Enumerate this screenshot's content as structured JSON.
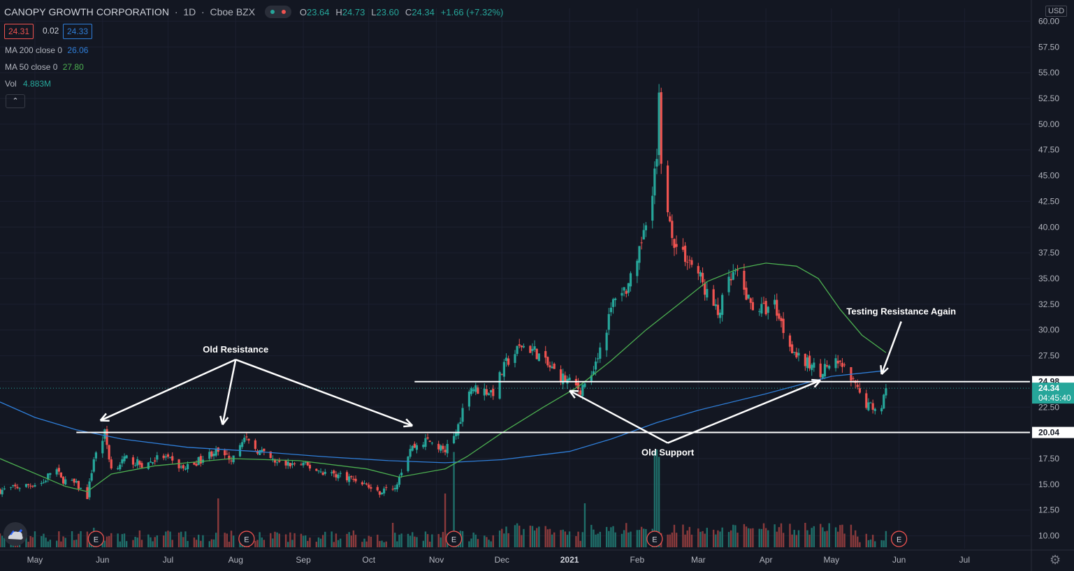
{
  "header": {
    "title": "CANOPY GROWTH CORPORATION",
    "interval": "1D",
    "exchange": "Cboe BZX",
    "ohlc": [
      {
        "k": "O",
        "v": "23.64"
      },
      {
        "k": "H",
        "v": "24.73"
      },
      {
        "k": "L",
        "v": "23.60"
      },
      {
        "k": "C",
        "v": "24.34"
      }
    ],
    "change": "+1.66 (+7.32%)",
    "bid": "24.31",
    "spread": "0.02",
    "ask": "24.33"
  },
  "legend": {
    "ma200_label": "MA 200 close 0",
    "ma200_value": "26.06",
    "ma50_label": "MA 50 close 0",
    "ma50_value": "27.80",
    "vol_label": "Vol",
    "vol_value": "4.883M",
    "collapse_glyph": "⌃"
  },
  "axis": {
    "currency": "USD",
    "countdown": "04:45:40",
    "earnings_marker": "E",
    "settings_icon": "gear-icon"
  },
  "colors": {
    "up": "#26a69a",
    "down": "#ef5350",
    "ma200": "#2f7ed8",
    "ma50": "#4caf50",
    "annotation": "#ffffff",
    "background": "#131722"
  },
  "chart_data": {
    "type": "candlestick",
    "symbol": "CANOPY GROWTH CORPORATION",
    "ylim": [
      8.75,
      61.25
    ],
    "y_ticks": [
      "10.00",
      "12.50",
      "15.00",
      "17.50",
      "20.00",
      "22.50",
      "25.00",
      "27.50",
      "30.00",
      "32.50",
      "35.00",
      "37.50",
      "40.00",
      "42.50",
      "45.00",
      "47.50",
      "50.00",
      "52.50",
      "55.00",
      "57.50",
      "60.00"
    ],
    "x_ticks": [
      "May",
      "Jun",
      "Jul",
      "Aug",
      "Sep",
      "Oct",
      "Nov",
      "Dec",
      "2021",
      "Feb",
      "Mar",
      "Apr",
      "May",
      "Jun",
      "Jul"
    ],
    "bold_x_ticks": [
      "2021"
    ],
    "x_range": [
      "2020-04-15",
      "2021-07-31"
    ],
    "month_starts": [
      "2020-05-01",
      "2020-06-01",
      "2020-07-01",
      "2020-08-01",
      "2020-09-01",
      "2020-10-01",
      "2020-11-01",
      "2020-12-01",
      "2021-01-01",
      "2021-02-01",
      "2021-03-01",
      "2021-04-01",
      "2021-05-01",
      "2021-06-01",
      "2021-07-01"
    ],
    "price_anchors": [
      [
        "2020-04-15",
        14.4
      ],
      [
        "2020-05-05",
        15.2
      ],
      [
        "2020-05-10",
        16.8
      ],
      [
        "2020-05-13",
        15.5
      ],
      [
        "2020-05-20",
        15.0
      ],
      [
        "2020-05-25",
        13.8
      ],
      [
        "2020-05-28",
        17.5
      ],
      [
        "2020-06-02",
        20.0
      ],
      [
        "2020-06-05",
        16.5
      ],
      [
        "2020-06-12",
        17.5
      ],
      [
        "2020-06-20",
        16.8
      ],
      [
        "2020-06-28",
        17.8
      ],
      [
        "2020-07-08",
        16.5
      ],
      [
        "2020-07-16",
        17.4
      ],
      [
        "2020-07-22",
        18.2
      ],
      [
        "2020-07-30",
        17.6
      ],
      [
        "2020-08-04",
        19.5
      ],
      [
        "2020-08-10",
        18.5
      ],
      [
        "2020-08-20",
        17.0
      ],
      [
        "2020-09-01",
        16.9
      ],
      [
        "2020-09-10",
        16.2
      ],
      [
        "2020-09-20",
        15.8
      ],
      [
        "2020-09-28",
        15.2
      ],
      [
        "2020-10-05",
        14.2
      ],
      [
        "2020-10-13",
        14.8
      ],
      [
        "2020-10-20",
        18.5
      ],
      [
        "2020-10-28",
        19.3
      ],
      [
        "2020-11-05",
        18.2
      ],
      [
        "2020-11-10",
        20.0
      ],
      [
        "2020-11-16",
        24.5
      ],
      [
        "2020-11-20",
        24.2
      ],
      [
        "2020-11-27",
        24.0
      ],
      [
        "2020-12-03",
        26.8
      ],
      [
        "2020-12-10",
        28.5
      ],
      [
        "2020-12-16",
        28.0
      ],
      [
        "2020-12-22",
        26.5
      ],
      [
        "2020-12-30",
        25.2
      ],
      [
        "2021-01-06",
        24.2
      ],
      [
        "2021-01-12",
        26.5
      ],
      [
        "2021-01-17",
        29.5
      ],
      [
        "2021-01-22",
        33.5
      ],
      [
        "2021-01-27",
        34.0
      ],
      [
        "2021-02-01",
        36.0
      ],
      [
        "2021-02-04",
        40.0
      ],
      [
        "2021-02-08",
        44.0
      ],
      [
        "2021-02-10",
        47.0
      ],
      [
        "2021-02-11",
        52.5
      ],
      [
        "2021-02-12",
        47.0
      ],
      [
        "2021-02-15",
        41.0
      ],
      [
        "2021-02-19",
        38.0
      ],
      [
        "2021-02-24",
        37.0
      ],
      [
        "2021-03-01",
        35.5
      ],
      [
        "2021-03-05",
        33.5
      ],
      [
        "2021-03-10",
        31.5
      ],
      [
        "2021-03-15",
        34.5
      ],
      [
        "2021-03-18",
        35.5
      ],
      [
        "2021-03-25",
        32.5
      ],
      [
        "2021-03-31",
        32.0
      ],
      [
        "2021-04-05",
        32.5
      ],
      [
        "2021-04-10",
        29.5
      ],
      [
        "2021-04-16",
        27.2
      ],
      [
        "2021-04-22",
        26.5
      ],
      [
        "2021-04-26",
        26.0
      ],
      [
        "2021-05-01",
        26.8
      ],
      [
        "2021-05-06",
        26.5
      ],
      [
        "2021-05-12",
        24.5
      ],
      [
        "2021-05-16",
        23.0
      ],
      [
        "2021-05-20",
        22.5
      ],
      [
        "2021-05-24",
        22.8
      ],
      [
        "2021-05-26",
        24.34
      ]
    ],
    "ma50": [
      [
        "2020-04-15",
        17.5
      ],
      [
        "2020-05-15",
        14.8
      ],
      [
        "2020-05-25",
        14.3
      ],
      [
        "2020-06-05",
        16.0
      ],
      [
        "2020-06-25",
        16.8
      ],
      [
        "2020-07-30",
        17.5
      ],
      [
        "2020-08-30",
        17.3
      ],
      [
        "2020-09-30",
        16.5
      ],
      [
        "2020-10-15",
        15.7
      ],
      [
        "2020-11-05",
        16.5
      ],
      [
        "2020-11-15",
        17.7
      ],
      [
        "2020-12-01",
        20.0
      ],
      [
        "2020-12-20",
        22.5
      ],
      [
        "2021-01-05",
        24.5
      ],
      [
        "2021-01-20",
        27.0
      ],
      [
        "2021-02-05",
        30.0
      ],
      [
        "2021-02-20",
        32.5
      ],
      [
        "2021-03-05",
        34.7
      ],
      [
        "2021-03-20",
        36.0
      ],
      [
        "2021-04-01",
        36.5
      ],
      [
        "2021-04-15",
        36.2
      ],
      [
        "2021-04-25",
        35.0
      ],
      [
        "2021-05-05",
        32.0
      ],
      [
        "2021-05-15",
        29.5
      ],
      [
        "2021-05-26",
        27.8
      ]
    ],
    "ma200": [
      [
        "2020-04-15",
        23.0
      ],
      [
        "2020-05-01",
        21.5
      ],
      [
        "2020-05-20",
        20.3
      ],
      [
        "2020-06-10",
        19.4
      ],
      [
        "2020-07-10",
        18.6
      ],
      [
        "2020-08-10",
        18.2
      ],
      [
        "2020-09-10",
        17.7
      ],
      [
        "2020-10-10",
        17.3
      ],
      [
        "2020-11-05",
        17.1
      ],
      [
        "2020-12-01",
        17.4
      ],
      [
        "2021-01-01",
        18.2
      ],
      [
        "2021-01-20",
        19.4
      ],
      [
        "2021-02-10",
        21.0
      ],
      [
        "2021-03-01",
        22.2
      ],
      [
        "2021-04-01",
        23.8
      ],
      [
        "2021-05-01",
        25.5
      ],
      [
        "2021-05-26",
        26.06
      ]
    ],
    "volume_scale_max": 40,
    "volume_spikes": [
      [
        "2020-05-28",
        8
      ],
      [
        "2020-07-24",
        20
      ],
      [
        "2020-10-12",
        10
      ],
      [
        "2020-11-05",
        22
      ],
      [
        "2020-11-09",
        39
      ],
      [
        "2021-01-08",
        18
      ],
      [
        "2021-02-09",
        39
      ],
      [
        "2021-02-10",
        40
      ],
      [
        "2021-02-11",
        37
      ]
    ],
    "earnings_dates": [
      "2020-05-29",
      "2020-08-06",
      "2020-11-09",
      "2021-02-09",
      "2021-06-01"
    ],
    "last_price": 24.34,
    "price_labels": [
      {
        "value": 24.98,
        "label": "24.98"
      },
      {
        "value": 20.04,
        "label": "20.04"
      },
      {
        "value": 24.34,
        "label": "24.34"
      }
    ],
    "levels": [
      {
        "value": 24.98,
        "from": "2020-10-22",
        "to": "2021-07-31"
      },
      {
        "value": 20.04,
        "from": "2020-05-20",
        "to": "2021-07-31"
      }
    ],
    "annotations": [
      {
        "text": "Old Resistance",
        "at": [
          "2020-08-01",
          27.8
        ],
        "targets": [
          [
            "2020-05-31",
            21.2
          ],
          [
            "2020-07-26",
            20.8
          ],
          [
            "2020-10-21",
            20.7
          ]
        ]
      },
      {
        "text": "Testing Resistance Again",
        "at": [
          "2021-06-02",
          31.5
        ],
        "targets": [
          [
            "2021-05-24",
            25.7
          ]
        ]
      },
      {
        "text": "Old Support",
        "at": [
          "2021-02-15",
          17.8
        ],
        "targets": [
          [
            "2021-01-01",
            24.1
          ],
          [
            "2021-04-26",
            25.1
          ]
        ]
      }
    ]
  }
}
